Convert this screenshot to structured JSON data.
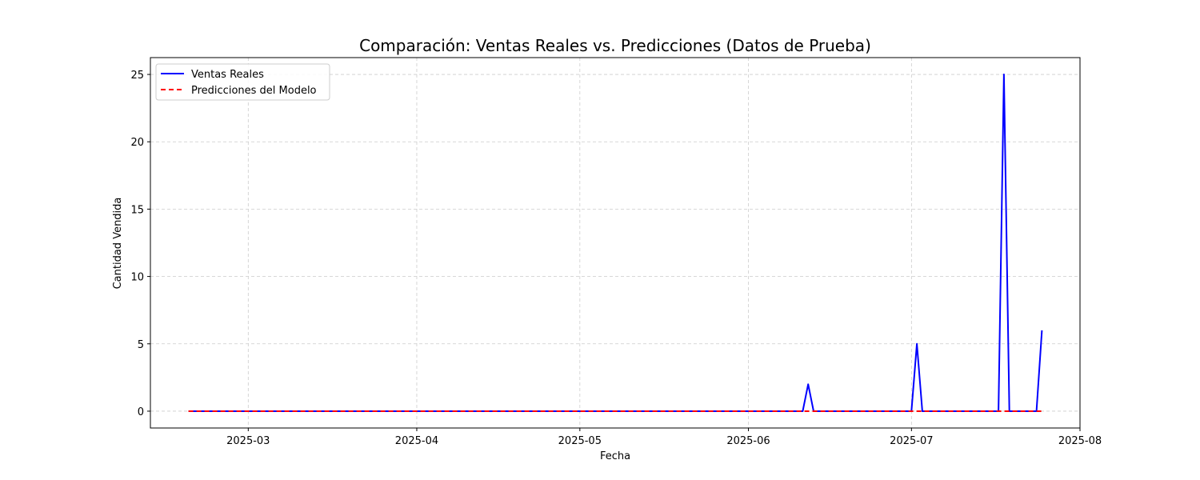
{
  "chart_data": {
    "type": "line",
    "title": "Comparación: Ventas Reales vs. Predicciones (Datos de Prueba)",
    "xlabel": "Fecha",
    "ylabel": "Cantidad Vendida",
    "x_type": "date",
    "xlim": [
      "2025-02-11",
      "2025-08-01"
    ],
    "ylim": [
      -1.25,
      26.25
    ],
    "x_ticks": [
      "2025-03-01",
      "2025-04-01",
      "2025-05-01",
      "2025-06-01",
      "2025-07-01",
      "2025-08-01"
    ],
    "x_tick_labels": [
      "2025-03",
      "2025-04",
      "2025-05",
      "2025-06",
      "2025-07",
      "2025-08"
    ],
    "y_ticks": [
      0,
      5,
      10,
      15,
      20,
      25
    ],
    "y_tick_labels": [
      "0",
      "5",
      "10",
      "15",
      "20",
      "25"
    ],
    "grid": true,
    "legend_position": "top-left",
    "series": [
      {
        "name": "Ventas Reales",
        "color": "#0000ff",
        "dash": "solid",
        "points": [
          {
            "x": "2025-02-18",
            "y": 0
          },
          {
            "x": "2025-06-11",
            "y": 0
          },
          {
            "x": "2025-06-12",
            "y": 2
          },
          {
            "x": "2025-06-13",
            "y": 0
          },
          {
            "x": "2025-07-01",
            "y": 0
          },
          {
            "x": "2025-07-02",
            "y": 5
          },
          {
            "x": "2025-07-03",
            "y": 0
          },
          {
            "x": "2025-07-17",
            "y": 0
          },
          {
            "x": "2025-07-18",
            "y": 25
          },
          {
            "x": "2025-07-19",
            "y": 0
          },
          {
            "x": "2025-07-24",
            "y": 0
          },
          {
            "x": "2025-07-25",
            "y": 6
          }
        ]
      },
      {
        "name": "Predicciones del Modelo",
        "color": "#ff0000",
        "dash": "dashed",
        "points": [
          {
            "x": "2025-02-18",
            "y": 0
          },
          {
            "x": "2025-07-25",
            "y": 0
          }
        ]
      }
    ]
  }
}
